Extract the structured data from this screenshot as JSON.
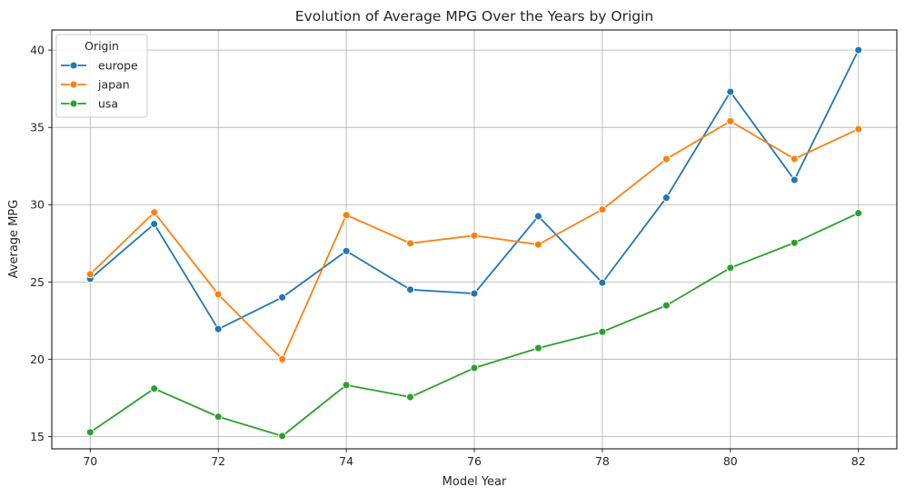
{
  "chart_data": {
    "type": "line",
    "title": "Evolution of Average MPG Over the Years by Origin",
    "xlabel": "Model Year",
    "ylabel": "Average MPG",
    "x": [
      70,
      71,
      72,
      73,
      74,
      75,
      76,
      77,
      78,
      79,
      80,
      81,
      82
    ],
    "xticks": [
      70,
      72,
      74,
      76,
      78,
      80,
      82
    ],
    "yticks": [
      15,
      20,
      25,
      30,
      35,
      40
    ],
    "xlim": [
      69.4,
      82.6
    ],
    "ylim": [
      14.2,
      41.3
    ],
    "grid": true,
    "legend": {
      "title": "Origin",
      "position": "top-left"
    },
    "series": [
      {
        "name": "europe",
        "color": "#1f77b4",
        "values": [
          25.2,
          28.75,
          21.95,
          24.0,
          27.0,
          24.5,
          24.25,
          29.25,
          24.95,
          30.45,
          37.3,
          31.6,
          40.0
        ]
      },
      {
        "name": "japan",
        "color": "#ff7f0e",
        "values": [
          25.5,
          29.5,
          24.2,
          20.0,
          29.33,
          27.5,
          28.0,
          27.42,
          29.69,
          32.95,
          35.4,
          32.96,
          34.89
        ]
      },
      {
        "name": "usa",
        "color": "#2ca02c",
        "values": [
          15.27,
          18.1,
          16.28,
          15.03,
          18.33,
          17.55,
          19.43,
          20.72,
          21.77,
          23.48,
          25.91,
          27.53,
          29.45
        ]
      }
    ]
  }
}
